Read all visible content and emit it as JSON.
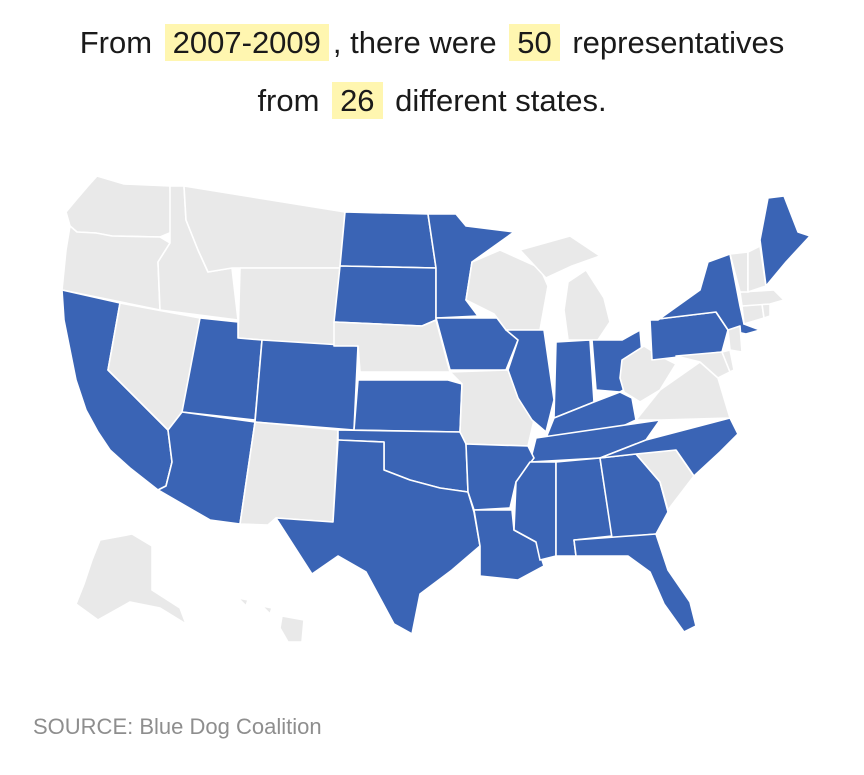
{
  "headline": {
    "part1": "From",
    "period": "2007-2009",
    "part2": ", there were",
    "count": "50",
    "part3": "representatives",
    "part4": "from",
    "states": "26",
    "part5": "different states."
  },
  "source": "SOURCE: Blue Dog Coalition",
  "colors": {
    "highlighted": "#3a64b5",
    "other": "#e9e9e9",
    "highlight_bg": "#fff6b0"
  },
  "highlighted_states": [
    "CA",
    "UT",
    "CO",
    "AZ",
    "ND",
    "SD",
    "MN",
    "IA",
    "KS",
    "OK",
    "TX",
    "AR",
    "LA",
    "IL",
    "IN",
    "OH",
    "KY",
    "TN",
    "MS",
    "AL",
    "GA",
    "FL",
    "NC",
    "PA",
    "NY",
    "ME"
  ]
}
